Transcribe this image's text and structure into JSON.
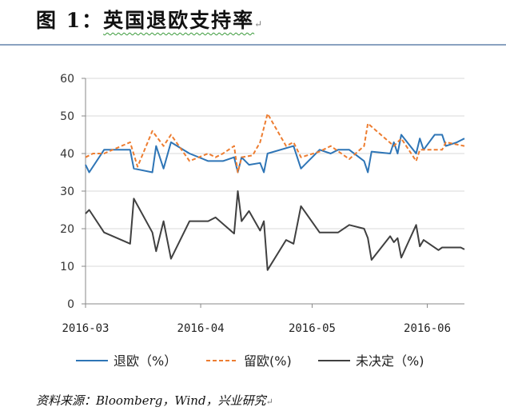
{
  "title": {
    "figure_label": "图 1：",
    "text": "英国退欧支持率",
    "return_mark": "↵"
  },
  "footer": {
    "text": "资料来源：Bloomberg，Wind，兴业研究",
    "return_mark": "↵"
  },
  "chart_data": {
    "type": "line",
    "title": "",
    "xlabel": "",
    "ylabel": "",
    "ylim": [
      0,
      60
    ],
    "yticks": [
      "0",
      "10",
      "20",
      "30",
      "40",
      "50",
      "60"
    ],
    "xlim": [
      "2016-03-01",
      "2016-06-11"
    ],
    "xticks": [
      {
        "date": "2016-03-01",
        "label": "2016-03"
      },
      {
        "date": "2016-04-01",
        "label": "2016-04"
      },
      {
        "date": "2016-05-01",
        "label": "2016-05"
      },
      {
        "date": "2016-06-01",
        "label": "2016-06"
      }
    ],
    "grid": "horizontal",
    "legend": "bottom",
    "series": [
      {
        "name": "退欧（%）",
        "color": "#2e75b6",
        "style": "solid",
        "points": [
          [
            "2016-03-01",
            37
          ],
          [
            "2016-03-02",
            35
          ],
          [
            "2016-03-06",
            41
          ],
          [
            "2016-03-13",
            41
          ],
          [
            "2016-03-14",
            36
          ],
          [
            "2016-03-19",
            35
          ],
          [
            "2016-03-20",
            42
          ],
          [
            "2016-03-22",
            36
          ],
          [
            "2016-03-24",
            43
          ],
          [
            "2016-03-29",
            40
          ],
          [
            "2016-04-03",
            38
          ],
          [
            "2016-04-07",
            38
          ],
          [
            "2016-04-10",
            39
          ],
          [
            "2016-04-11",
            35
          ],
          [
            "2016-04-12",
            39
          ],
          [
            "2016-04-14",
            37
          ],
          [
            "2016-04-17",
            37.5
          ],
          [
            "2016-04-18",
            35
          ],
          [
            "2016-04-19",
            40
          ],
          [
            "2016-04-26",
            42
          ],
          [
            "2016-04-28",
            36
          ],
          [
            "2016-05-03",
            41
          ],
          [
            "2016-05-06",
            40
          ],
          [
            "2016-05-08",
            41
          ],
          [
            "2016-05-11",
            41
          ],
          [
            "2016-05-15",
            38
          ],
          [
            "2016-05-16",
            35
          ],
          [
            "2016-05-17",
            40.5
          ],
          [
            "2016-05-22",
            40
          ],
          [
            "2016-05-23",
            43
          ],
          [
            "2016-05-24",
            40
          ],
          [
            "2016-05-25",
            45
          ],
          [
            "2016-05-29",
            40
          ],
          [
            "2016-05-30",
            44
          ],
          [
            "2016-05-31",
            41
          ],
          [
            "2016-06-03",
            45
          ],
          [
            "2016-06-05",
            45
          ],
          [
            "2016-06-06",
            42
          ],
          [
            "2016-06-09",
            43
          ],
          [
            "2016-06-11",
            44
          ]
        ]
      },
      {
        "name": "留欧(%)",
        "color": "#ed7d31",
        "style": "dashed",
        "points": [
          [
            "2016-03-01",
            39
          ],
          [
            "2016-03-03",
            40
          ],
          [
            "2016-03-06",
            40
          ],
          [
            "2016-03-13",
            43
          ],
          [
            "2016-03-15",
            36.5
          ],
          [
            "2016-03-19",
            46
          ],
          [
            "2016-03-22",
            42
          ],
          [
            "2016-03-24",
            45
          ],
          [
            "2016-03-29",
            38
          ],
          [
            "2016-04-03",
            40
          ],
          [
            "2016-04-05",
            39
          ],
          [
            "2016-04-07",
            40
          ],
          [
            "2016-04-10",
            42
          ],
          [
            "2016-04-11",
            35
          ],
          [
            "2016-04-12",
            39
          ],
          [
            "2016-04-15",
            39.5
          ],
          [
            "2016-04-17",
            43
          ],
          [
            "2016-04-19",
            50.6
          ],
          [
            "2016-04-24",
            42
          ],
          [
            "2016-04-26",
            43
          ],
          [
            "2016-04-28",
            39
          ],
          [
            "2016-05-03",
            40.5
          ],
          [
            "2016-05-06",
            42
          ],
          [
            "2016-05-11",
            38.5
          ],
          [
            "2016-05-15",
            42
          ],
          [
            "2016-05-16",
            48
          ],
          [
            "2016-05-23",
            42
          ],
          [
            "2016-05-25",
            44
          ],
          [
            "2016-05-29",
            38
          ],
          [
            "2016-05-30",
            41
          ],
          [
            "2016-06-05",
            41
          ],
          [
            "2016-06-06",
            43
          ],
          [
            "2016-06-11",
            42
          ]
        ]
      },
      {
        "name": "未决定（%)",
        "color": "#404040",
        "style": "solid",
        "points": [
          [
            "2016-03-01",
            24
          ],
          [
            "2016-03-02",
            25
          ],
          [
            "2016-03-06",
            19
          ],
          [
            "2016-03-13",
            16
          ],
          [
            "2016-03-14",
            28
          ],
          [
            "2016-03-19",
            19
          ],
          [
            "2016-03-20",
            14
          ],
          [
            "2016-03-22",
            22
          ],
          [
            "2016-03-24",
            12
          ],
          [
            "2016-03-29",
            22
          ],
          [
            "2016-04-03",
            22
          ],
          [
            "2016-04-05",
            23
          ],
          [
            "2016-04-10",
            18.7
          ],
          [
            "2016-04-11",
            30
          ],
          [
            "2016-04-12",
            22
          ],
          [
            "2016-04-14",
            24.7
          ],
          [
            "2016-04-17",
            19.5
          ],
          [
            "2016-04-18",
            22
          ],
          [
            "2016-04-19",
            9
          ],
          [
            "2016-04-24",
            17
          ],
          [
            "2016-04-26",
            16
          ],
          [
            "2016-04-28",
            26
          ],
          [
            "2016-05-03",
            19
          ],
          [
            "2016-05-08",
            19
          ],
          [
            "2016-05-11",
            21
          ],
          [
            "2016-05-15",
            20
          ],
          [
            "2016-05-16",
            17.5
          ],
          [
            "2016-05-17",
            11.7
          ],
          [
            "2016-05-22",
            18
          ],
          [
            "2016-05-23",
            16.4
          ],
          [
            "2016-05-24",
            17.5
          ],
          [
            "2016-05-25",
            12.3
          ],
          [
            "2016-05-29",
            21
          ],
          [
            "2016-05-30",
            15.3
          ],
          [
            "2016-05-31",
            17
          ],
          [
            "2016-06-04",
            14.3
          ],
          [
            "2016-06-05",
            15
          ],
          [
            "2016-06-10",
            15
          ],
          [
            "2016-06-11",
            14.5
          ]
        ]
      }
    ]
  }
}
